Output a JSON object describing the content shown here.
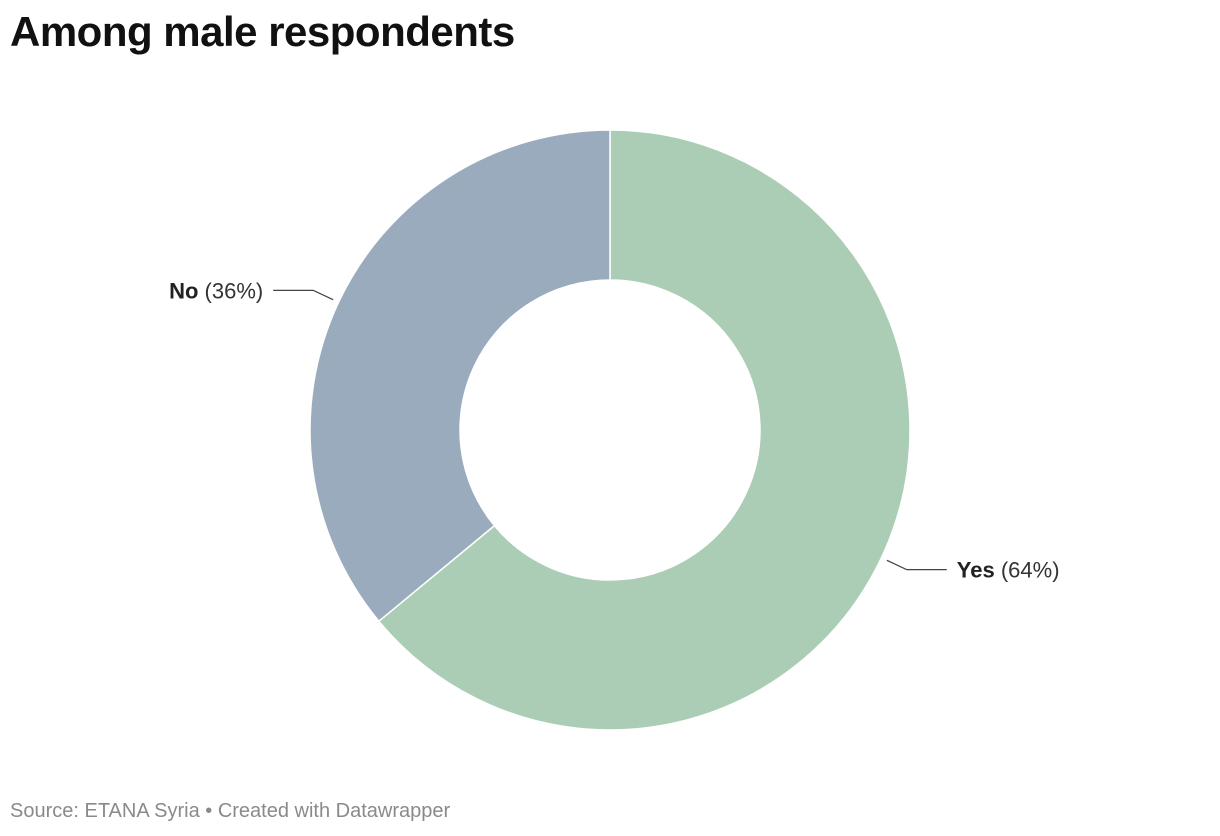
{
  "chart_data": {
    "type": "pie",
    "donut": true,
    "title": "Among male respondents",
    "slices": [
      {
        "label": "Yes",
        "value": 64,
        "value_text": "(64%)",
        "color": "#abcdb5"
      },
      {
        "label": "No",
        "value": 36,
        "value_text": "(36%)",
        "color": "#99abbd"
      }
    ],
    "start": "12 o'clock",
    "direction": "clockwise"
  },
  "footer": {
    "source_text": "Source: ETANA Syria • Created with Datawrapper"
  }
}
